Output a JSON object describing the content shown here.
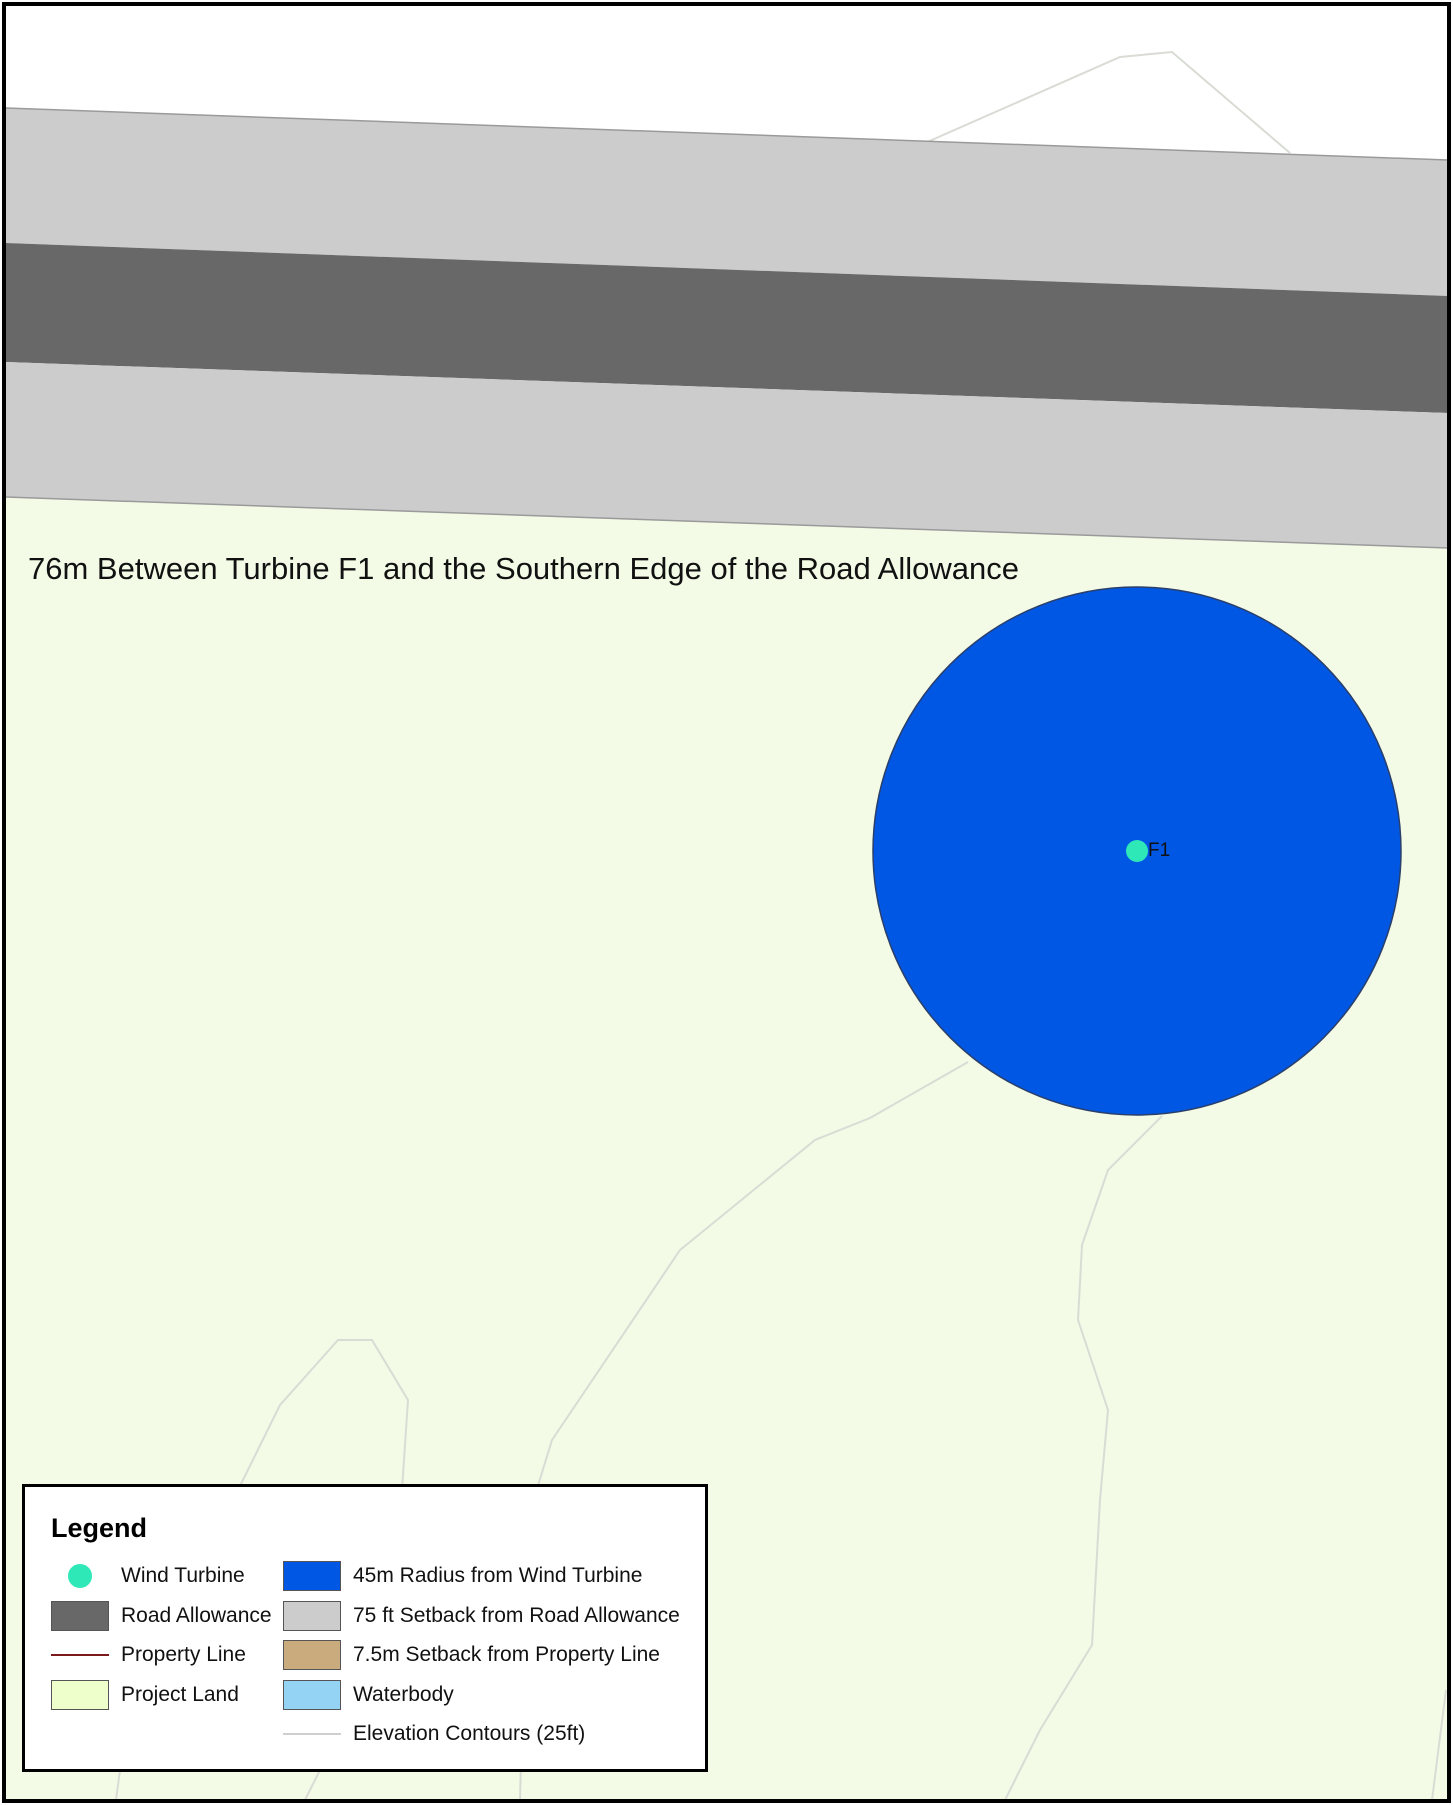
{
  "map": {
    "annotation": "76m Between Turbine F1 and the Southern Edge of the Road Allowance",
    "turbine_id": "F1",
    "colors": {
      "project_land": "#f3fbe7",
      "road_allowance": "#686868",
      "road_setback": "#cccccc",
      "turbine_radius": "#0057e4",
      "turbine_point": "#2ee8b8",
      "contour": "#d9dcd4"
    }
  },
  "legend": {
    "title": "Legend",
    "items": [
      {
        "label": "Wind Turbine",
        "symbol": "wind-turbine-point-icon"
      },
      {
        "label": "Road Allowance",
        "color": "#686868"
      },
      {
        "label": "Property Line",
        "symbol": "property-line-icon",
        "color": "#7a1a1a"
      },
      {
        "label": "Project Land",
        "color": "#eeffcc"
      },
      {
        "label": "45m Radius from Wind Turbine",
        "color": "#0057e4"
      },
      {
        "label": "75 ft Setback from Road Allowance",
        "color": "#cccccc"
      },
      {
        "label": "7.5m Setback from Property Line",
        "color": "#c9ab7d"
      },
      {
        "label": "Waterbody",
        "color": "#95d3f5"
      },
      {
        "label": "Elevation Contours (25ft)",
        "symbol": "elevation-contour-line-icon",
        "color": "#cfcfcf"
      }
    ]
  }
}
